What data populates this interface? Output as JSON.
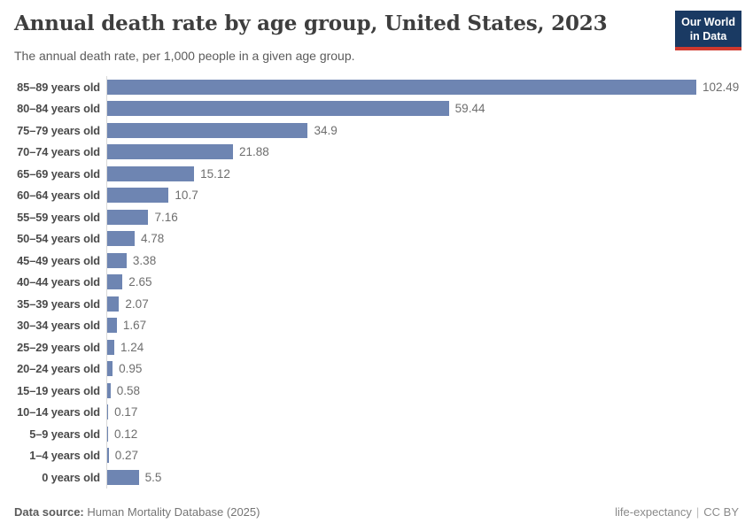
{
  "header": {
    "title": "Annual death rate by age group, United States, 2023",
    "subtitle": "The annual death rate, per 1,000 people in a given age group.",
    "logo": {
      "line1": "Our World",
      "line2": "in Data"
    }
  },
  "chart_data": {
    "type": "bar",
    "orientation": "horizontal",
    "title": "Annual death rate by age group, United States, 2023",
    "xlabel": "",
    "ylabel": "",
    "xlim": [
      0,
      110
    ],
    "grid": false,
    "legend": false,
    "bar_color": "#6e85b2",
    "axis_line_color": "#d9d9d9",
    "categories": [
      "85–89 years old",
      "80–84 years old",
      "75–79 years old",
      "70–74 years old",
      "65–69 years old",
      "60–64 years old",
      "55–59 years old",
      "50–54 years old",
      "45–49 years old",
      "40–44 years old",
      "35–39 years old",
      "30–34 years old",
      "25–29 years old",
      "20–24 years old",
      "15–19 years old",
      "10–14 years old",
      "5–9 years old",
      "1–4 years old",
      "0 years old"
    ],
    "values": [
      102.49,
      59.44,
      34.9,
      21.88,
      15.12,
      10.7,
      7.16,
      4.78,
      3.38,
      2.65,
      2.07,
      1.67,
      1.24,
      0.95,
      0.58,
      0.17,
      0.12,
      0.27,
      5.5
    ],
    "value_labels": [
      "102.49",
      "59.44",
      "34.9",
      "21.88",
      "15.12",
      "10.7",
      "7.16",
      "4.78",
      "3.38",
      "2.65",
      "2.07",
      "1.67",
      "1.24",
      "0.95",
      "0.58",
      "0.17",
      "0.12",
      "0.27",
      "5.5"
    ]
  },
  "footer": {
    "source_label": "Data source:",
    "source_value": "Human Mortality Database (2025)",
    "dataset_name": "life-expectancy",
    "separator": "|",
    "license": "CC BY"
  },
  "colors": {
    "bar": "#6e85b2",
    "title_text": "#3e3e3e",
    "subtitle_text": "#5b5b5b",
    "category_text": "#4a4a4a",
    "value_text": "#6e6e6e",
    "logo_background": "#1a3a63",
    "logo_underline": "#d0392e"
  }
}
